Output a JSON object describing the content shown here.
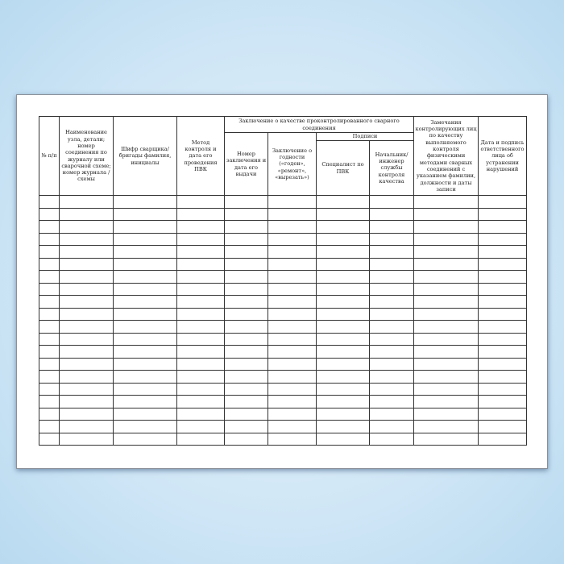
{
  "form": {
    "headers": {
      "num": "№ п/п",
      "node": "Наименование узла, детали; номер соединения по журналу или сварочной схеме; номер журнала /схемы",
      "welder": "Шифр сварщика/бригады фамилия, инициалы",
      "method": "Метод контроля и дата его проведения ПВК",
      "conclusion_group": "Заключение о качестве проконтролированного сварного соединения",
      "conclusion_number": "Номер заключения и дата его выдачи",
      "suitability": "Заключение о годности («годен», «ремонт», «вырезать»)",
      "signatures": "Подписи",
      "specialist": "Специалист по ПВК",
      "chief": "Начальник/ инженер службы контроля качества",
      "remarks": "Замечания контролирующих лиц по качеству выполняемого контроля физическими методами сварных соединений с указанием фамилии, должности и даты записи",
      "fix_date": "Дата и подпись ответственного лица об устранении нарушений"
    },
    "empty_rows": 20
  }
}
